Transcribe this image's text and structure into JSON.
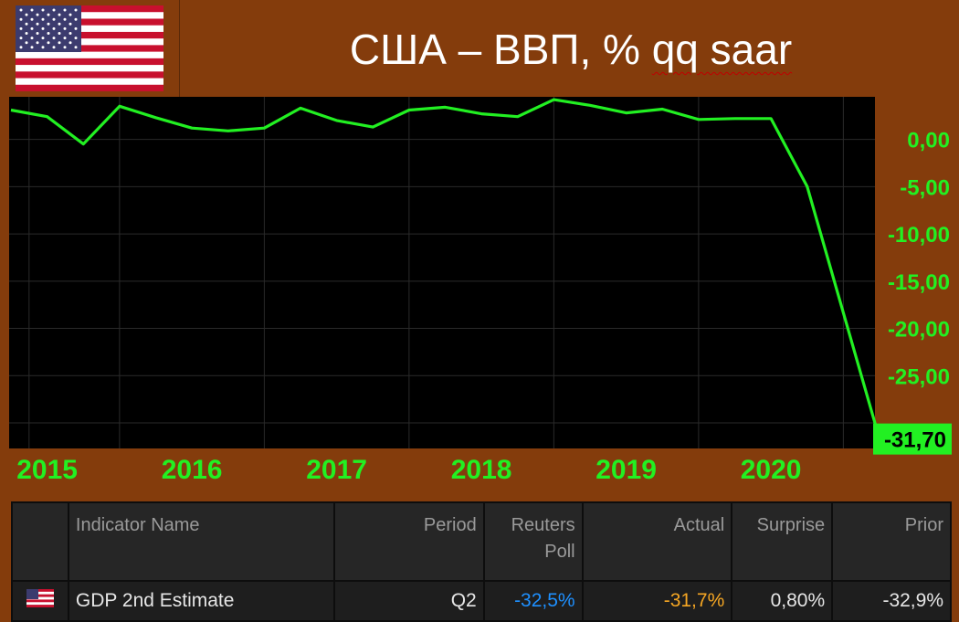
{
  "header": {
    "title_main": "США – ВВП, %",
    "title_tail": "qq saar",
    "flag": "us-flag-icon"
  },
  "chart_data": {
    "type": "line",
    "title": "США – ВВП, % qq saar",
    "xlabel": "",
    "ylabel": "",
    "x_tick_labels": [
      "2015",
      "2016",
      "2017",
      "2018",
      "2019",
      "2020"
    ],
    "y_tick_labels": [
      "0,00",
      "-5,00",
      "-10,00",
      "-15,00",
      "-20,00",
      "-25,00"
    ],
    "last_value_label": "-31,70",
    "ylim": [
      -32.7,
      4.5
    ],
    "grid": true,
    "series": [
      {
        "color": "#22f022",
        "points": [
          {
            "x": 2014.25,
            "y": 3.1
          },
          {
            "x": 2014.5,
            "y": 2.4
          },
          {
            "x": 2014.75,
            "y": -0.5
          },
          {
            "x": 2015.0,
            "y": 3.5
          },
          {
            "x": 2015.25,
            "y": 2.3
          },
          {
            "x": 2015.5,
            "y": 1.2
          },
          {
            "x": 2015.75,
            "y": 0.9
          },
          {
            "x": 2016.0,
            "y": 1.2
          },
          {
            "x": 2016.25,
            "y": 3.3
          },
          {
            "x": 2016.5,
            "y": 2.0
          },
          {
            "x": 2016.75,
            "y": 1.3
          },
          {
            "x": 2017.0,
            "y": 3.1
          },
          {
            "x": 2017.25,
            "y": 3.4
          },
          {
            "x": 2017.5,
            "y": 2.7
          },
          {
            "x": 2017.75,
            "y": 2.4
          },
          {
            "x": 2018.0,
            "y": 4.2
          },
          {
            "x": 2018.25,
            "y": 3.6
          },
          {
            "x": 2018.5,
            "y": 2.8
          },
          {
            "x": 2018.75,
            "y": 3.2
          },
          {
            "x": 2019.0,
            "y": 2.1
          },
          {
            "x": 2019.25,
            "y": 2.2
          },
          {
            "x": 2019.5,
            "y": 2.2
          },
          {
            "x": 2019.75,
            "y": -5.0
          },
          {
            "x": 2020.25,
            "y": -31.7
          }
        ]
      }
    ]
  },
  "table": {
    "headers": {
      "indicator": "Indicator Name",
      "period": "Period",
      "poll_line1": "Reuters",
      "poll_line2": "Poll",
      "actual": "Actual",
      "surprise": "Surprise",
      "prior": "Prior"
    },
    "row": {
      "flag": "us-flag-icon",
      "indicator": "GDP 2nd Estimate",
      "period": "Q2",
      "poll": "-32,5%",
      "actual": "-31,7%",
      "surprise": "0,80%",
      "prior": "-32,9%"
    },
    "colors": {
      "poll": "#1e90ff",
      "actual": "#f5a623"
    }
  }
}
